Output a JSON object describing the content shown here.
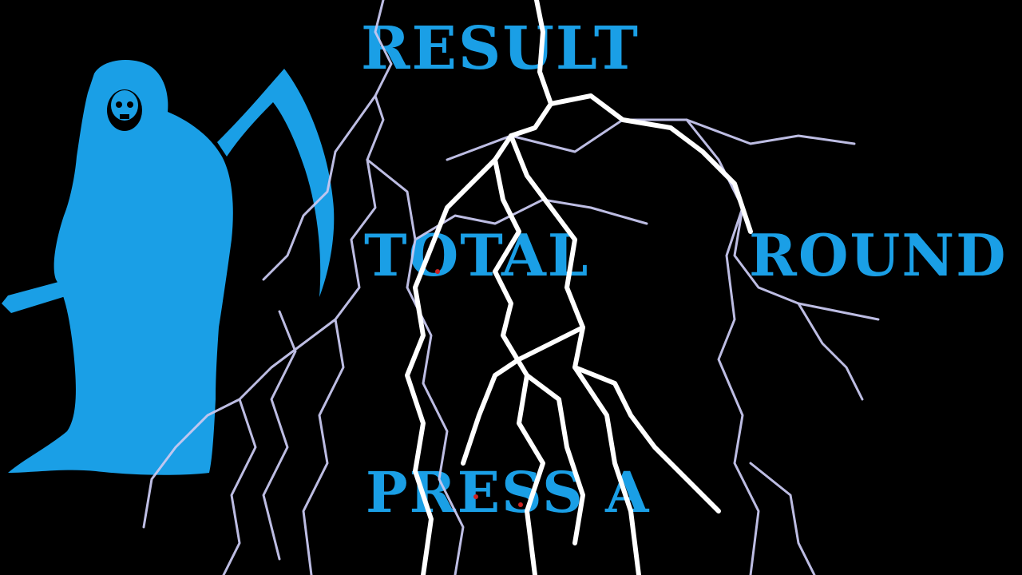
{
  "screen": {
    "title": "RESULT",
    "total_label": "TOTAL",
    "round_label": "ROUND",
    "prompt": "PRESS  A"
  },
  "colors": {
    "background": "#000000",
    "accent": "#1a9fe6",
    "lightning_main": "#ffffff",
    "lightning_glow": "#c8c8f0"
  },
  "icons": {
    "reaper": "grim-reaper-silhouette",
    "lightning": "lightning-bolts"
  }
}
